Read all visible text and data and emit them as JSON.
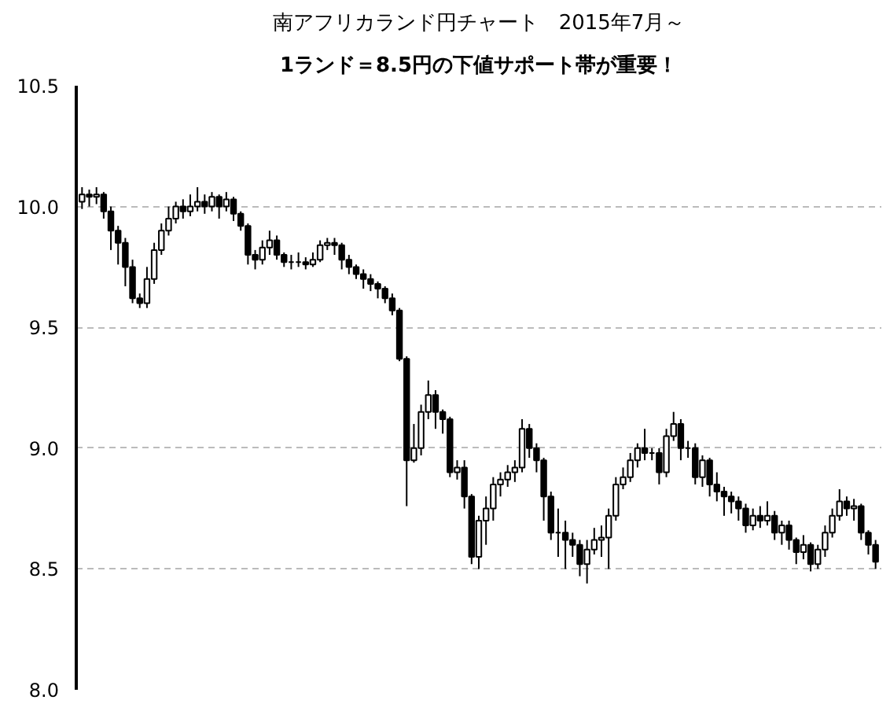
{
  "chart_data": {
    "type": "candlestick",
    "title": "南アフリカランド円チャート　2015年7月～",
    "subtitle": "1ランド＝8.5円の下値サポート帯が重要！",
    "categories": [
      null,
      null,
      null,
      null,
      null,
      null,
      null,
      null,
      null,
      null,
      null,
      null,
      null,
      null,
      null,
      null,
      null,
      null,
      null,
      null,
      null,
      null,
      null,
      null,
      null,
      null,
      null,
      null,
      null,
      null,
      null,
      null,
      null,
      null,
      null,
      null,
      null,
      null,
      null,
      null,
      null,
      null,
      null,
      null,
      null,
      null,
      null,
      null,
      null,
      null,
      null,
      null,
      null,
      null,
      null,
      null,
      null,
      null,
      null,
      null,
      null,
      null,
      null,
      null,
      null,
      null,
      null,
      null,
      null,
      null,
      null,
      null,
      null,
      null,
      null,
      null,
      null,
      null,
      null,
      null,
      null,
      null,
      null,
      null,
      null,
      null,
      null,
      null,
      null,
      null,
      null,
      null,
      null,
      null,
      null,
      null,
      null,
      null,
      null,
      null,
      null,
      null,
      null,
      null,
      null,
      null,
      null,
      null,
      null,
      null,
      null
    ],
    "ohlc": [
      [
        10.02,
        10.08,
        9.99,
        10.05
      ],
      [
        10.05,
        10.07,
        10.0,
        10.04
      ],
      [
        10.04,
        10.08,
        10.01,
        10.05
      ],
      [
        10.05,
        10.06,
        9.95,
        9.98
      ],
      [
        9.98,
        10.0,
        9.82,
        9.9
      ],
      [
        9.9,
        9.92,
        9.76,
        9.85
      ],
      [
        9.85,
        9.87,
        9.67,
        9.75
      ],
      [
        9.75,
        9.78,
        9.6,
        9.62
      ],
      [
        9.62,
        9.64,
        9.58,
        9.6
      ],
      [
        9.6,
        9.75,
        9.58,
        9.7
      ],
      [
        9.7,
        9.85,
        9.68,
        9.82
      ],
      [
        9.82,
        9.93,
        9.8,
        9.9
      ],
      [
        9.9,
        10.0,
        9.88,
        9.95
      ],
      [
        9.95,
        10.02,
        9.93,
        10.0
      ],
      [
        10.0,
        10.03,
        9.95,
        9.98
      ],
      [
        9.98,
        10.05,
        9.96,
        10.0
      ],
      [
        10.0,
        10.08,
        9.98,
        10.02
      ],
      [
        10.02,
        10.05,
        9.97,
        10.0
      ],
      [
        10.0,
        10.06,
        9.98,
        10.04
      ],
      [
        10.04,
        10.05,
        9.95,
        10.0
      ],
      [
        10.0,
        10.06,
        9.98,
        10.03
      ],
      [
        10.03,
        10.04,
        9.94,
        9.97
      ],
      [
        9.97,
        9.98,
        9.9,
        9.92
      ],
      [
        9.92,
        9.93,
        9.76,
        9.8
      ],
      [
        9.8,
        9.82,
        9.74,
        9.78
      ],
      [
        9.78,
        9.86,
        9.76,
        9.83
      ],
      [
        9.83,
        9.9,
        9.8,
        9.86
      ],
      [
        9.86,
        9.88,
        9.78,
        9.8
      ],
      [
        9.8,
        9.81,
        9.75,
        9.77
      ],
      [
        9.77,
        9.8,
        9.74,
        9.77
      ],
      [
        9.77,
        9.81,
        9.75,
        9.77
      ],
      [
        9.77,
        9.79,
        9.74,
        9.76
      ],
      [
        9.76,
        9.81,
        9.75,
        9.78
      ],
      [
        9.78,
        9.86,
        9.77,
        9.84
      ],
      [
        9.84,
        9.87,
        9.82,
        9.85
      ],
      [
        9.85,
        9.87,
        9.8,
        9.84
      ],
      [
        9.84,
        9.85,
        9.74,
        9.78
      ],
      [
        9.78,
        9.8,
        9.72,
        9.75
      ],
      [
        9.75,
        9.76,
        9.7,
        9.72
      ],
      [
        9.72,
        9.74,
        9.66,
        9.7
      ],
      [
        9.7,
        9.72,
        9.65,
        9.68
      ],
      [
        9.68,
        9.69,
        9.62,
        9.66
      ],
      [
        9.66,
        9.67,
        9.6,
        9.62
      ],
      [
        9.62,
        9.64,
        9.55,
        9.57
      ],
      [
        9.57,
        9.58,
        9.36,
        9.37
      ],
      [
        9.37,
        9.38,
        8.76,
        8.95
      ],
      [
        8.95,
        9.1,
        8.94,
        9.0
      ],
      [
        9.0,
        9.18,
        8.97,
        9.15
      ],
      [
        9.15,
        9.28,
        9.12,
        9.22
      ],
      [
        9.22,
        9.24,
        9.08,
        9.15
      ],
      [
        9.15,
        9.16,
        9.06,
        9.12
      ],
      [
        9.12,
        9.13,
        8.88,
        8.9
      ],
      [
        8.9,
        8.95,
        8.87,
        8.92
      ],
      [
        8.92,
        8.95,
        8.75,
        8.8
      ],
      [
        8.8,
        8.81,
        8.52,
        8.55
      ],
      [
        8.55,
        8.72,
        8.5,
        8.7
      ],
      [
        8.7,
        8.8,
        8.6,
        8.75
      ],
      [
        8.75,
        8.88,
        8.7,
        8.85
      ],
      [
        8.85,
        8.9,
        8.8,
        8.87
      ],
      [
        8.87,
        8.93,
        8.84,
        8.9
      ],
      [
        8.9,
        8.95,
        8.86,
        8.92
      ],
      [
        8.92,
        9.12,
        8.9,
        9.08
      ],
      [
        9.08,
        9.1,
        8.96,
        9.0
      ],
      [
        9.0,
        9.02,
        8.9,
        8.95
      ],
      [
        8.95,
        8.96,
        8.7,
        8.8
      ],
      [
        8.8,
        8.82,
        8.62,
        8.65
      ],
      [
        8.65,
        8.75,
        8.55,
        8.65
      ],
      [
        8.65,
        8.7,
        8.5,
        8.62
      ],
      [
        8.62,
        8.65,
        8.55,
        8.6
      ],
      [
        8.6,
        8.62,
        8.47,
        8.52
      ],
      [
        8.52,
        8.62,
        8.44,
        8.58
      ],
      [
        8.58,
        8.67,
        8.56,
        8.62
      ],
      [
        8.62,
        8.68,
        8.55,
        8.63
      ],
      [
        8.63,
        8.75,
        8.5,
        8.72
      ],
      [
        8.72,
        8.88,
        8.7,
        8.85
      ],
      [
        8.85,
        8.92,
        8.83,
        8.88
      ],
      [
        8.88,
        8.98,
        8.86,
        8.95
      ],
      [
        8.95,
        9.02,
        8.92,
        9.0
      ],
      [
        9.0,
        9.08,
        8.95,
        8.98
      ],
      [
        8.98,
        9.0,
        8.95,
        8.98
      ],
      [
        8.98,
        9.0,
        8.85,
        8.9
      ],
      [
        8.9,
        9.08,
        8.88,
        9.05
      ],
      [
        9.05,
        9.15,
        9.03,
        9.1
      ],
      [
        9.1,
        9.12,
        8.95,
        9.0
      ],
      [
        9.0,
        9.03,
        8.96,
        9.0
      ],
      [
        9.0,
        9.02,
        8.85,
        8.88
      ],
      [
        8.88,
        8.97,
        8.84,
        8.95
      ],
      [
        8.95,
        8.96,
        8.8,
        8.85
      ],
      [
        8.85,
        8.9,
        8.78,
        8.82
      ],
      [
        8.82,
        8.84,
        8.72,
        8.8
      ],
      [
        8.8,
        8.82,
        8.73,
        8.78
      ],
      [
        8.78,
        8.8,
        8.7,
        8.75
      ],
      [
        8.75,
        8.77,
        8.65,
        8.68
      ],
      [
        8.68,
        8.75,
        8.66,
        8.72
      ],
      [
        8.72,
        8.76,
        8.67,
        8.7
      ],
      [
        8.7,
        8.78,
        8.68,
        8.72
      ],
      [
        8.72,
        8.74,
        8.62,
        8.65
      ],
      [
        8.65,
        8.7,
        8.6,
        8.68
      ],
      [
        8.68,
        8.7,
        8.58,
        8.62
      ],
      [
        8.62,
        8.63,
        8.52,
        8.57
      ],
      [
        8.57,
        8.64,
        8.54,
        8.6
      ],
      [
        8.6,
        8.61,
        8.49,
        8.52
      ],
      [
        8.52,
        8.6,
        8.5,
        8.58
      ],
      [
        8.58,
        8.68,
        8.55,
        8.65
      ],
      [
        8.65,
        8.75,
        8.63,
        8.72
      ],
      [
        8.72,
        8.83,
        8.7,
        8.78
      ],
      [
        8.78,
        8.8,
        8.72,
        8.75
      ],
      [
        8.75,
        8.79,
        8.7,
        8.76
      ],
      [
        8.76,
        8.77,
        8.62,
        8.65
      ],
      [
        8.65,
        8.66,
        8.56,
        8.6
      ],
      [
        8.6,
        8.62,
        8.5,
        8.53
      ]
    ],
    "color": "#000000",
    "ylim": [
      8.0,
      10.5
    ],
    "yticks": [
      {
        "value": 8.0,
        "label": "8.0"
      },
      {
        "value": 8.5,
        "label": "8.5"
      },
      {
        "value": 9.0,
        "label": "9.0"
      },
      {
        "value": 9.5,
        "label": "9.5"
      },
      {
        "value": 10.0,
        "label": "10.0"
      },
      {
        "value": 10.5,
        "label": "10.5"
      }
    ],
    "grid": "y",
    "tick_labels": "y"
  }
}
